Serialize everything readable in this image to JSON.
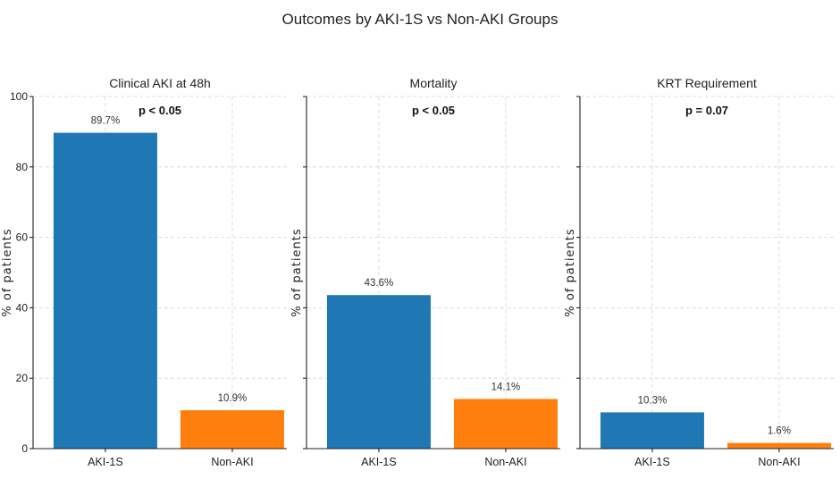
{
  "chart_data": {
    "title": "Outcomes by AKI-1S vs Non-AKI Groups",
    "ylabel": "% of patients",
    "ylim": [
      0,
      100
    ],
    "yticks": [
      "0",
      "20",
      "40",
      "60",
      "80",
      "100"
    ],
    "categories": [
      "AKI-1S",
      "Non-AKI"
    ],
    "colors": [
      "#1f77b4",
      "#ff7f0e"
    ],
    "grid": true,
    "panels": [
      {
        "type": "bar",
        "title": "Clinical AKI at 48h",
        "p_value": "p < 0.05",
        "values": [
          89.7,
          10.9
        ],
        "labels": [
          "89.7%",
          "10.9%"
        ]
      },
      {
        "type": "bar",
        "title": "Mortality",
        "p_value": "p < 0.05",
        "values": [
          43.6,
          14.1
        ],
        "labels": [
          "43.6%",
          "14.1%"
        ]
      },
      {
        "type": "bar",
        "title": "KRT Requirement",
        "p_value": "p = 0.07",
        "values": [
          10.3,
          1.6
        ],
        "labels": [
          "10.3%",
          "1.6%"
        ]
      }
    ]
  }
}
